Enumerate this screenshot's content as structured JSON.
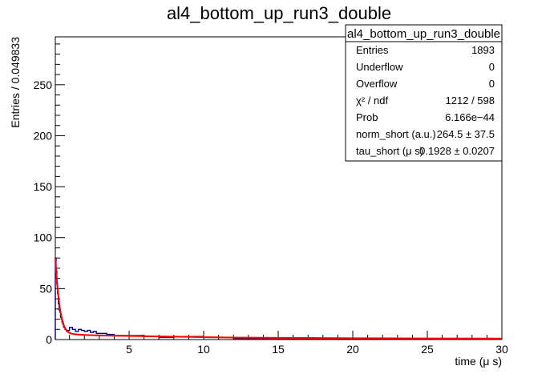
{
  "chart_data": {
    "type": "histogram",
    "title": "al4_bottom_up_run3_double",
    "xlabel": "time (μ s)",
    "ylabel": "Entries / 0.049833",
    "xlim": [
      0.05,
      30
    ],
    "ylim": [
      0,
      297
    ],
    "x_ticks": [
      5,
      10,
      15,
      20,
      25,
      30
    ],
    "y_ticks": [
      0,
      50,
      100,
      150,
      200,
      250
    ],
    "grid": false,
    "histogram": {
      "name": "data",
      "bin_width": 0.049833,
      "color": "#000080",
      "points": [
        [
          0.05,
          80
        ],
        [
          0.1,
          67
        ],
        [
          0.15,
          55
        ],
        [
          0.2,
          45
        ],
        [
          0.25,
          35
        ],
        [
          0.3,
          29
        ],
        [
          0.35,
          27
        ],
        [
          0.4,
          22
        ],
        [
          0.45,
          20
        ],
        [
          0.5,
          17
        ],
        [
          0.55,
          15
        ],
        [
          0.6,
          12
        ],
        [
          0.7,
          10
        ],
        [
          0.8,
          8
        ],
        [
          0.9,
          9
        ],
        [
          1.0,
          12
        ],
        [
          1.2,
          10
        ],
        [
          1.4,
          8
        ],
        [
          1.6,
          10
        ],
        [
          1.8,
          9
        ],
        [
          2.0,
          8
        ],
        [
          2.2,
          9
        ],
        [
          2.4,
          7
        ],
        [
          2.6,
          8
        ],
        [
          2.8,
          6
        ],
        [
          3.0,
          6
        ],
        [
          3.5,
          5
        ],
        [
          4.0,
          4
        ],
        [
          5.0,
          4
        ],
        [
          6.0,
          3
        ],
        [
          7.0,
          2
        ],
        [
          8.0,
          3
        ],
        [
          10.0,
          2
        ],
        [
          12.0,
          1
        ],
        [
          15.0,
          1
        ],
        [
          18.0,
          1
        ],
        [
          20.0,
          1
        ],
        [
          25.0,
          1
        ],
        [
          29.8,
          1
        ]
      ]
    },
    "fit": {
      "name": "fit",
      "color": "#ff0000",
      "points": [
        [
          0.05,
          80
        ],
        [
          0.1,
          69
        ],
        [
          0.15,
          59
        ],
        [
          0.2,
          50
        ],
        [
          0.25,
          43
        ],
        [
          0.3,
          37
        ],
        [
          0.35,
          31
        ],
        [
          0.4,
          27
        ],
        [
          0.5,
          20
        ],
        [
          0.6,
          15
        ],
        [
          0.7,
          11
        ],
        [
          0.8,
          9
        ],
        [
          0.9,
          7.5
        ],
        [
          1.0,
          6.5
        ],
        [
          1.2,
          5.5
        ],
        [
          1.5,
          5
        ],
        [
          2.0,
          4.5
        ],
        [
          3.0,
          4
        ],
        [
          5.0,
          3.5
        ],
        [
          8.0,
          2.8
        ],
        [
          12.0,
          2
        ],
        [
          16.0,
          1.6
        ],
        [
          20.0,
          1.3
        ],
        [
          25.0,
          1.1
        ],
        [
          30.0,
          1
        ]
      ]
    }
  },
  "stats_box": {
    "title": "al4_bottom_up_run3_double",
    "rows": [
      {
        "label": "Entries",
        "value": "1893"
      },
      {
        "label": "Underflow",
        "value": "0"
      },
      {
        "label": "Overflow",
        "value": "0"
      },
      {
        "label": "χ² / ndf",
        "value": "1212 / 598"
      },
      {
        "label": "Prob",
        "value": "6.166e−44"
      },
      {
        "label": "norm_short (a.u.)",
        "value": "264.5 ± 37.5"
      },
      {
        "label": "tau_short (μ s)",
        "value": "0.1928 ± 0.0207"
      }
    ]
  }
}
